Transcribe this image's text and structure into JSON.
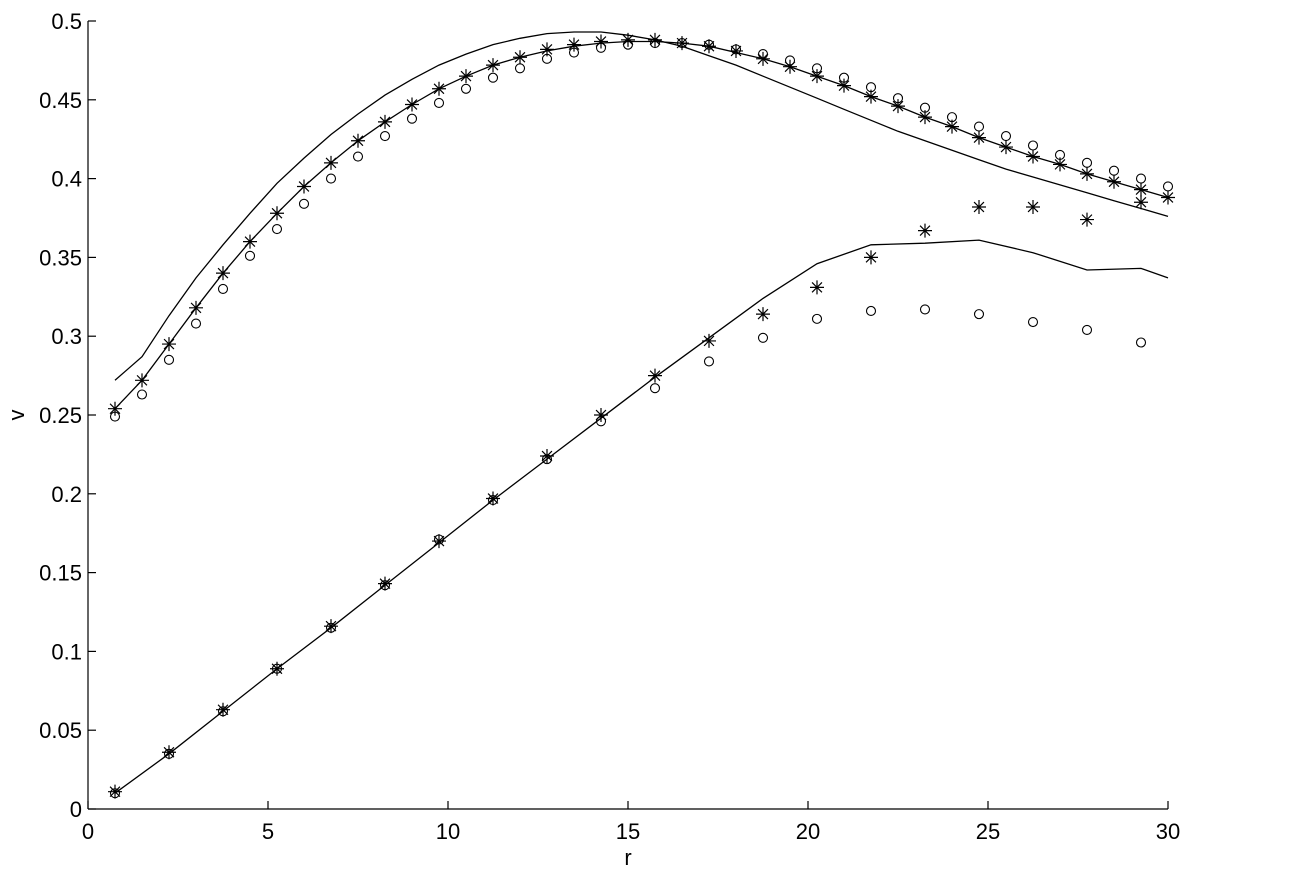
{
  "chart_data": {
    "type": "scatter",
    "title": "",
    "xlabel": "r",
    "ylabel": "v",
    "xlim": [
      0,
      30
    ],
    "ylim": [
      0,
      0.5
    ],
    "xticks": [
      0,
      5,
      10,
      15,
      20,
      25,
      30
    ],
    "yticks": [
      0,
      0.05,
      0.1,
      0.15,
      0.2,
      0.25,
      0.3,
      0.35,
      0.4,
      0.45,
      0.5
    ],
    "xtick_labels": [
      "0",
      "5",
      "10",
      "15",
      "20",
      "25",
      "30"
    ],
    "ytick_labels": [
      "0",
      "0.05",
      "0.1",
      "0.15",
      "0.2",
      "0.25",
      "0.3",
      "0.35",
      "0.4",
      "0.45",
      "0.5"
    ],
    "grid": false,
    "legend": "none",
    "series": [
      {
        "marker": "line",
        "x": [
          0.75,
          1.5,
          2.25,
          3.0,
          3.75,
          4.5,
          5.25,
          6.0,
          6.75,
          7.5,
          8.25,
          9.0,
          9.75,
          10.5,
          11.25,
          12.0,
          12.75,
          13.5,
          14.25,
          15.0,
          15.75,
          16.5,
          17.25,
          18.0,
          18.75,
          19.5,
          20.25,
          21.0,
          21.75,
          22.5,
          23.25,
          24.0,
          24.75,
          25.5,
          26.25,
          27.0,
          27.75,
          28.5,
          29.25,
          30.0
        ],
        "y": [
          0.272,
          0.287,
          0.313,
          0.337,
          0.358,
          0.378,
          0.397,
          0.413,
          0.428,
          0.441,
          0.453,
          0.463,
          0.472,
          0.479,
          0.485,
          0.489,
          0.492,
          0.493,
          0.493,
          0.491,
          0.488,
          0.484,
          0.478,
          0.472,
          0.465,
          0.458,
          0.451,
          0.444,
          0.437,
          0.43,
          0.424,
          0.418,
          0.412,
          0.406,
          0.401,
          0.396,
          0.391,
          0.386,
          0.381,
          0.376
        ]
      },
      {
        "marker": "line",
        "x": [
          0.75,
          1.5,
          2.25,
          3.0,
          3.75,
          4.5,
          5.25,
          6.0,
          6.75,
          7.5,
          8.25,
          9.0,
          9.75,
          10.5,
          11.25,
          12.0,
          12.75,
          13.5,
          14.25,
          15.0,
          15.75,
          16.5,
          17.25,
          18.0,
          18.75,
          19.5,
          20.25,
          21.0,
          21.75,
          22.5,
          23.25,
          24.0,
          24.75,
          25.5,
          26.25,
          27.0,
          27.75,
          28.5,
          29.25,
          30.0
        ],
        "y": [
          0.254,
          0.272,
          0.295,
          0.318,
          0.34,
          0.36,
          0.378,
          0.395,
          0.41,
          0.424,
          0.436,
          0.447,
          0.457,
          0.465,
          0.472,
          0.477,
          0.481,
          0.484,
          0.486,
          0.487,
          0.487,
          0.486,
          0.484,
          0.48,
          0.476,
          0.471,
          0.465,
          0.459,
          0.452,
          0.446,
          0.439,
          0.433,
          0.426,
          0.42,
          0.414,
          0.409,
          0.403,
          0.398,
          0.393,
          0.388
        ]
      },
      {
        "marker": "asterisk",
        "x": [
          0.75,
          1.5,
          2.25,
          3.0,
          3.75,
          4.5,
          5.25,
          6.0,
          6.75,
          7.5,
          8.25,
          9.0,
          9.75,
          10.5,
          11.25,
          12.0,
          12.75,
          13.5,
          14.25,
          15.0,
          15.75,
          16.5,
          17.25,
          18.0,
          18.75,
          19.5,
          20.25,
          21.0,
          21.75,
          22.5,
          23.25,
          24.0,
          24.75,
          25.5,
          26.25,
          27.0,
          27.75,
          28.5,
          29.25,
          30.0
        ],
        "y": [
          0.254,
          0.272,
          0.295,
          0.318,
          0.34,
          0.36,
          0.378,
          0.395,
          0.41,
          0.424,
          0.436,
          0.447,
          0.457,
          0.465,
          0.472,
          0.477,
          0.482,
          0.485,
          0.487,
          0.488,
          0.488,
          0.486,
          0.484,
          0.481,
          0.476,
          0.471,
          0.465,
          0.459,
          0.452,
          0.446,
          0.439,
          0.433,
          0.426,
          0.42,
          0.414,
          0.409,
          0.403,
          0.398,
          0.393,
          0.388
        ]
      },
      {
        "marker": "circle",
        "x": [
          0.75,
          1.5,
          2.25,
          3.0,
          3.75,
          4.5,
          5.25,
          6.0,
          6.75,
          7.5,
          8.25,
          9.0,
          9.75,
          10.5,
          11.25,
          12.0,
          12.75,
          13.5,
          14.25,
          15.0,
          15.75,
          16.5,
          17.25,
          18.0,
          18.75,
          19.5,
          20.25,
          21.0,
          21.75,
          22.5,
          23.25,
          24.0,
          24.75,
          25.5,
          26.25,
          27.0,
          27.75,
          28.5,
          29.25,
          30.0
        ],
        "y": [
          0.249,
          0.263,
          0.285,
          0.308,
          0.33,
          0.351,
          0.368,
          0.384,
          0.4,
          0.414,
          0.427,
          0.438,
          0.448,
          0.457,
          0.464,
          0.47,
          0.476,
          0.48,
          0.483,
          0.485,
          0.486,
          0.486,
          0.485,
          0.482,
          0.479,
          0.475,
          0.47,
          0.464,
          0.458,
          0.451,
          0.445,
          0.439,
          0.433,
          0.427,
          0.421,
          0.415,
          0.41,
          0.405,
          0.4,
          0.395
        ]
      },
      {
        "marker": "line",
        "x": [
          0.75,
          2.25,
          3.75,
          5.25,
          6.75,
          8.25,
          9.75,
          11.25,
          12.75,
          14.25,
          15.75,
          17.25,
          18.75,
          20.25,
          21.75,
          23.25,
          24.75,
          26.25,
          27.75,
          29.25,
          30.0
        ],
        "y": [
          0.01,
          0.035,
          0.062,
          0.089,
          0.115,
          0.142,
          0.169,
          0.196,
          0.222,
          0.248,
          0.274,
          0.299,
          0.324,
          0.346,
          0.358,
          0.359,
          0.361,
          0.353,
          0.342,
          0.343,
          0.337
        ]
      },
      {
        "marker": "asterisk",
        "x": [
          0.75,
          2.25,
          3.75,
          5.25,
          6.75,
          8.25,
          9.75,
          11.25,
          12.75,
          14.25,
          15.75,
          17.25,
          18.75,
          20.25,
          21.75,
          23.25,
          24.75,
          26.25,
          27.75,
          29.25
        ],
        "y": [
          0.011,
          0.036,
          0.063,
          0.089,
          0.116,
          0.143,
          0.17,
          0.197,
          0.224,
          0.25,
          0.275,
          0.297,
          0.314,
          0.331,
          0.35,
          0.367,
          0.382,
          0.382,
          0.374,
          0.385
        ]
      },
      {
        "marker": "circle",
        "x": [
          0.75,
          2.25,
          3.75,
          5.25,
          6.75,
          8.25,
          9.75,
          11.25,
          12.75,
          14.25,
          15.75,
          17.25,
          18.75,
          20.25,
          21.75,
          23.25,
          24.75,
          26.25,
          27.75,
          29.25
        ],
        "y": [
          0.01,
          0.035,
          0.062,
          0.089,
          0.115,
          0.142,
          0.171,
          0.196,
          0.222,
          0.246,
          0.267,
          0.284,
          0.299,
          0.311,
          0.316,
          0.317,
          0.314,
          0.309,
          0.304,
          0.296
        ]
      }
    ]
  }
}
